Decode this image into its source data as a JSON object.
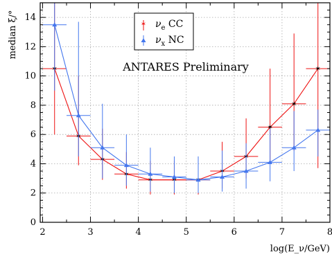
{
  "chart_data": {
    "type": "line",
    "title": "",
    "xlabel": "log(E_ν/GeV)",
    "ylabel": "median ξ/°",
    "xlim": [
      1.95,
      8.0
    ],
    "ylim": [
      0,
      15
    ],
    "x_ticks": [
      2,
      3,
      4,
      5,
      6,
      7,
      8
    ],
    "y_ticks": [
      0,
      2,
      4,
      6,
      8,
      10,
      12,
      14
    ],
    "grid": true,
    "legend_position": "top-center",
    "annotation": "ANTARES Preliminary",
    "bin_half_width": 0.25,
    "series": [
      {
        "name": "νe CC",
        "name_base": "ν",
        "name_sub": "e",
        "name_suffix": " CC",
        "color": "#ee1111",
        "marker": "star",
        "x": [
          2.25,
          2.75,
          3.25,
          3.75,
          4.25,
          4.75,
          5.25,
          5.75,
          6.25,
          6.75,
          7.25,
          7.75
        ],
        "y": [
          10.5,
          5.9,
          4.3,
          3.3,
          2.9,
          2.9,
          2.9,
          3.5,
          4.5,
          6.5,
          8.1,
          10.5
        ],
        "y_low": [
          6.0,
          3.9,
          2.9,
          2.3,
          1.9,
          1.9,
          1.9,
          2.3,
          3.0,
          4.1,
          4.9,
          3.7
        ],
        "y_high": [
          15.0,
          10.0,
          6.4,
          4.8,
          4.2,
          4.2,
          4.4,
          5.5,
          7.1,
          10.5,
          12.9,
          15.0
        ]
      },
      {
        "name": "νx NC",
        "name_base": "ν",
        "name_sub": "x",
        "name_suffix": " NC",
        "color": "#4477ee",
        "marker": "triangle",
        "x": [
          2.25,
          2.75,
          3.25,
          3.75,
          4.25,
          4.75,
          5.25,
          5.75,
          6.25,
          6.75,
          7.25,
          7.75
        ],
        "y": [
          13.5,
          7.3,
          5.1,
          3.9,
          3.3,
          3.1,
          2.9,
          3.1,
          3.5,
          4.1,
          5.1,
          6.3
        ],
        "y_low": [
          9.0,
          4.5,
          3.0,
          2.5,
          2.1,
          2.0,
          2.0,
          2.1,
          2.3,
          2.8,
          3.5,
          4.5
        ],
        "y_high": [
          15.0,
          13.7,
          8.1,
          6.0,
          5.1,
          4.5,
          4.5,
          4.9,
          5.4,
          6.4,
          7.6,
          7.7
        ]
      }
    ]
  }
}
